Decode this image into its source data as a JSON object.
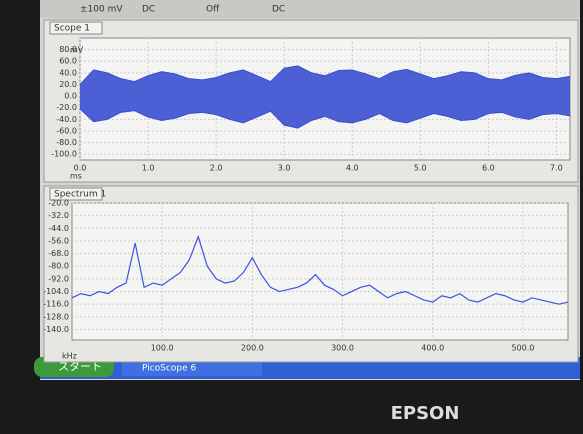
{
  "toolbar": [
    "±100 mV",
    "DC",
    "Off",
    "DC"
  ],
  "chart_data": [
    {
      "type": "area",
      "title": "Scope 1",
      "y_unit": "mV",
      "x_unit": "ms",
      "x": [
        0,
        0.2,
        0.4,
        0.6,
        0.8,
        1.0,
        1.2,
        1.4,
        1.6,
        1.8,
        2.0,
        2.2,
        2.4,
        2.6,
        2.8,
        3.0,
        3.2,
        3.4,
        3.6,
        3.8,
        4.0,
        4.2,
        4.4,
        4.6,
        4.8,
        5.0,
        5.2,
        5.4,
        5.6,
        5.8,
        6.0,
        6.2,
        6.4,
        6.6,
        6.8,
        7.0,
        7.2
      ],
      "series": [
        {
          "color": "#3a4fd0",
          "values": [
            20,
            45,
            40,
            30,
            25,
            35,
            42,
            38,
            30,
            28,
            32,
            40,
            45,
            35,
            25,
            48,
            52,
            40,
            35,
            44,
            45,
            38,
            30,
            42,
            46,
            38,
            30,
            35,
            42,
            40,
            30,
            28,
            36,
            40,
            32,
            30,
            34
          ]
        },
        {
          "color": "#3a4fd0",
          "values": [
            -22,
            -44,
            -40,
            -28,
            -25,
            -36,
            -42,
            -38,
            -30,
            -28,
            -32,
            -40,
            -46,
            -36,
            -26,
            -50,
            -55,
            -42,
            -35,
            -44,
            -46,
            -40,
            -30,
            -42,
            -46,
            -38,
            -30,
            -35,
            -42,
            -40,
            -30,
            -28,
            -36,
            -40,
            -32,
            -30,
            -34
          ]
        }
      ],
      "xlim": [
        0,
        7.2
      ],
      "ylim": [
        -110,
        100
      ],
      "xticks": [
        {
          "value": 0,
          "label": "0.0"
        },
        {
          "value": 1,
          "label": "1.0"
        },
        {
          "value": 2,
          "label": "2.0"
        },
        {
          "value": 3,
          "label": "3.0"
        },
        {
          "value": 4,
          "label": "4.0"
        },
        {
          "value": 5,
          "label": "5.0"
        },
        {
          "value": 6,
          "label": "6.0"
        },
        {
          "value": 7,
          "label": "7.0"
        }
      ],
      "yticks": [
        {
          "value": 80,
          "label": "80.0"
        },
        {
          "value": 60,
          "label": "60.0"
        },
        {
          "value": 40,
          "label": "40.0"
        },
        {
          "value": 20,
          "label": "20.0"
        },
        {
          "value": 0,
          "label": "0.0"
        },
        {
          "value": -20,
          "label": "-20.0"
        },
        {
          "value": -40,
          "label": "-40.0"
        },
        {
          "value": -60,
          "label": "-60.0"
        },
        {
          "value": -80,
          "label": "-80.0"
        },
        {
          "value": -100,
          "label": "-100.0"
        }
      ],
      "grid": true
    },
    {
      "type": "line",
      "title": "Spectrum 1",
      "x_unit": "kHz",
      "color": "#3a55e0",
      "x": [
        0,
        10,
        20,
        30,
        40,
        50,
        60,
        70,
        80,
        90,
        100,
        110,
        120,
        130,
        140,
        150,
        160,
        170,
        180,
        190,
        200,
        210,
        220,
        230,
        240,
        250,
        260,
        270,
        280,
        290,
        300,
        310,
        320,
        330,
        340,
        350,
        360,
        370,
        380,
        390,
        400,
        410,
        420,
        430,
        440,
        450,
        460,
        470,
        480,
        490,
        500,
        510,
        520,
        530,
        540,
        550
      ],
      "values": [
        -110,
        -106,
        -108,
        -104,
        -106,
        -100,
        -96,
        -58,
        -100,
        -96,
        -98,
        -92,
        -86,
        -74,
        -52,
        -80,
        -92,
        -96,
        -94,
        -86,
        -72,
        -88,
        -100,
        -104,
        -102,
        -100,
        -96,
        -88,
        -98,
        -102,
        -108,
        -104,
        -100,
        -98,
        -104,
        -110,
        -106,
        -104,
        -108,
        -112,
        -114,
        -108,
        -110,
        -106,
        -112,
        -114,
        -110,
        -106,
        -108,
        -112,
        -114,
        -110,
        -112,
        -114,
        -116,
        -114
      ],
      "xlim": [
        0,
        550
      ],
      "ylim": [
        -150,
        -20
      ],
      "xticks": [
        {
          "value": 100,
          "label": "100.0"
        },
        {
          "value": 200,
          "label": "200.0"
        },
        {
          "value": 300,
          "label": "300.0"
        },
        {
          "value": 400,
          "label": "400.0"
        },
        {
          "value": 500,
          "label": "500.0"
        }
      ],
      "yticks": [
        {
          "value": -20,
          "label": "-20.0"
        },
        {
          "value": -32,
          "label": "-32.0"
        },
        {
          "value": -44,
          "label": "-44.0"
        },
        {
          "value": -56,
          "label": "-56.0"
        },
        {
          "value": -68,
          "label": "-68.0"
        },
        {
          "value": -80,
          "label": "-80.0"
        },
        {
          "value": -92,
          "label": "-92.0"
        },
        {
          "value": -104,
          "label": "-104.0"
        },
        {
          "value": -116,
          "label": "-116.0"
        },
        {
          "value": -128,
          "label": "-128.0"
        },
        {
          "value": -140,
          "label": "-140.0"
        }
      ],
      "grid": true
    }
  ],
  "taskbar": {
    "start": "スタート",
    "app": "PicoScope 6"
  },
  "brand": "EPSON"
}
